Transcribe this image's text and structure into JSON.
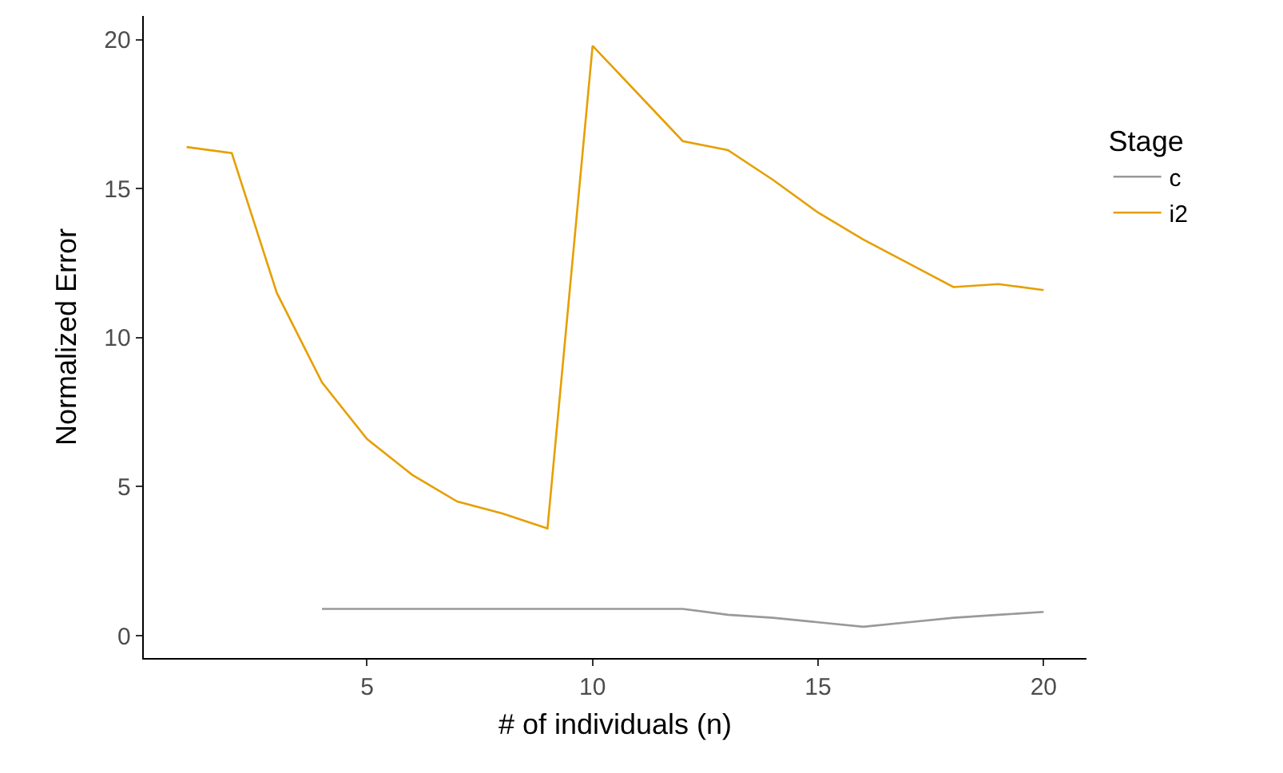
{
  "chart_data": {
    "type": "line",
    "xlabel": "# of individuals (n)",
    "ylabel": "Normalized Error",
    "legend_title": "Stage",
    "x": [
      1,
      2,
      3,
      4,
      5,
      6,
      7,
      8,
      9,
      10,
      11,
      12,
      13,
      14,
      15,
      16,
      17,
      18,
      19,
      20
    ],
    "series": [
      {
        "name": "c",
        "color": "#999999",
        "values": [
          null,
          null,
          null,
          0.9,
          0.9,
          0.9,
          0.9,
          0.9,
          0.9,
          0.9,
          0.9,
          0.9,
          0.7,
          0.6,
          0.45,
          0.3,
          0.45,
          0.6,
          0.7,
          0.8
        ]
      },
      {
        "name": "i2",
        "color": "#e69f00",
        "values": [
          16.4,
          16.2,
          11.5,
          8.5,
          6.6,
          5.4,
          4.5,
          4.1,
          3.6,
          19.8,
          18.2,
          16.6,
          16.3,
          15.3,
          14.2,
          13.3,
          12.5,
          11.7,
          11.8,
          11.6
        ]
      }
    ],
    "xlim": [
      0.05,
      20.95
    ],
    "xticks": [
      5,
      10,
      15,
      20
    ],
    "ylim": [
      -0.75,
      20.8
    ],
    "yticks": [
      0,
      5,
      10,
      15,
      20
    ],
    "grid": false,
    "legend": "right",
    "marker": "none",
    "line_style": "solid"
  }
}
